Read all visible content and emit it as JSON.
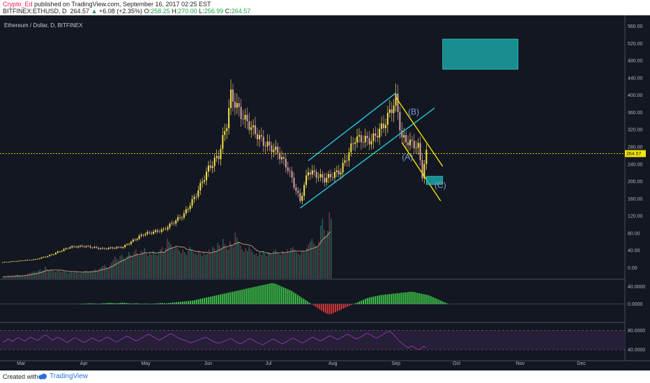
{
  "header": {
    "author": "Crypto_Ed",
    "published": "published on TradingView.com, September 16, 2017 02:25 EST",
    "symbol": "BITFINEX:ETHUSD, D",
    "last": "264.57",
    "change": "+6.08 (+2.35%)",
    "o_label": "O:",
    "o_value": "258.25",
    "h_label": "H:",
    "h_value": "270.00",
    "l_label": "L:",
    "l_value": "256.99",
    "c_label": "C:",
    "c_value": "264.57"
  },
  "footer": {
    "created": "Created with",
    "brand": "TradingView"
  },
  "colors": {
    "background": "#131722",
    "up_candle": "#f5e14a",
    "down_candle": "#d9a2a2",
    "channel": "#28c8dc",
    "wedge": "#f5e600",
    "target_box": "#1aa3a3",
    "macd_up": "#3fd14a",
    "macd_down": "#e03838",
    "rsi": "#9c3fb8"
  },
  "chart_data": [
    {
      "type": "candlestick",
      "title": "Ethereum / Dollar, D, BITFINEX",
      "x_ticks": [
        "Mar",
        "Apr",
        "May",
        "Jun",
        "Jul",
        "Aug",
        "Sep",
        "Oct",
        "Nov",
        "Dec"
      ],
      "y_ticks": [
        "560.00",
        "520.00",
        "480.00",
        "440.00",
        "400.00",
        "360.00",
        "320.00",
        "280.00",
        "240.00",
        "200.00",
        "160.00",
        "120.00",
        "80.00",
        "40.00",
        "0.00"
      ],
      "ylim": [
        -25,
        585
      ],
      "last_price": 264.57,
      "last_price_label": "264.57",
      "x_start": "2017-02-20",
      "series": [
        {
          "name": "price",
          "points": [
            {
              "date": "2017-02-20",
              "close": 12.7
            },
            {
              "date": "2017-03-01",
              "close": 16.3
            },
            {
              "date": "2017-03-08",
              "close": 19.5
            },
            {
              "date": "2017-03-15",
              "close": 28.5
            },
            {
              "date": "2017-03-25",
              "close": 48.0
            },
            {
              "date": "2017-04-01",
              "close": 50.0
            },
            {
              "date": "2017-04-10",
              "close": 44.0
            },
            {
              "date": "2017-04-20",
              "close": 48.0
            },
            {
              "date": "2017-04-30",
              "close": 78.0
            },
            {
              "date": "2017-05-10",
              "close": 88.0
            },
            {
              "date": "2017-05-20",
              "close": 124.0
            },
            {
              "date": "2017-05-26",
              "close": 170.0
            },
            {
              "date": "2017-06-01",
              "close": 230.0
            },
            {
              "date": "2017-06-06",
              "close": 260.0
            },
            {
              "date": "2017-06-10",
              "close": 335.0
            },
            {
              "date": "2017-06-12",
              "close": 400.0
            },
            {
              "date": "2017-06-17",
              "close": 355.0
            },
            {
              "date": "2017-06-22",
              "close": 325.0
            },
            {
              "date": "2017-06-28",
              "close": 290.0
            },
            {
              "date": "2017-07-05",
              "close": 268.0
            },
            {
              "date": "2017-07-10",
              "close": 230.0
            },
            {
              "date": "2017-07-16",
              "close": 155.0
            },
            {
              "date": "2017-07-20",
              "close": 225.0
            },
            {
              "date": "2017-07-28",
              "close": 205.0
            },
            {
              "date": "2017-08-05",
              "close": 225.0
            },
            {
              "date": "2017-08-12",
              "close": 300.0
            },
            {
              "date": "2017-08-20",
              "close": 295.0
            },
            {
              "date": "2017-08-26",
              "close": 330.0
            },
            {
              "date": "2017-09-01",
              "close": 390.0
            },
            {
              "date": "2017-09-04",
              "close": 300.0
            },
            {
              "date": "2017-09-08",
              "close": 290.0
            },
            {
              "date": "2017-09-12",
              "close": 280.0
            },
            {
              "date": "2017-09-14",
              "close": 215.0
            },
            {
              "date": "2017-09-16",
              "close": 264.57
            }
          ]
        }
      ],
      "volume": [
        3,
        3,
        3,
        4,
        3,
        4,
        4,
        5,
        6,
        5,
        4,
        5,
        5,
        6,
        7,
        8,
        9,
        10,
        11,
        9,
        12,
        14,
        11,
        13,
        18,
        15,
        12,
        14,
        12,
        11,
        10,
        12,
        13,
        10,
        11,
        12,
        10,
        9,
        10,
        11,
        9,
        10,
        11,
        9,
        8,
        9,
        10,
        12,
        11,
        10,
        12,
        11,
        13,
        14,
        12,
        15,
        17,
        19,
        21,
        18,
        16,
        20,
        24,
        28,
        33,
        30,
        28,
        34,
        36,
        32,
        30,
        34,
        40,
        36,
        33,
        40,
        44,
        38,
        35,
        42,
        40,
        46,
        38,
        34,
        40,
        36,
        42,
        38,
        35,
        40,
        44,
        48,
        40,
        46,
        60,
        56,
        52,
        48,
        44,
        50,
        46,
        42,
        38,
        44,
        40,
        36,
        42,
        48,
        44,
        40,
        38,
        36,
        42,
        38,
        34,
        40,
        36,
        38,
        44,
        40,
        48,
        46,
        42,
        54,
        50,
        46,
        60,
        52,
        48,
        44,
        56,
        52,
        48,
        70,
        62,
        56,
        50,
        44,
        40,
        46,
        42,
        48,
        44,
        40,
        36,
        38,
        34,
        40,
        36,
        42,
        38,
        34,
        40,
        38,
        36,
        42,
        44,
        40,
        38,
        36,
        42,
        40,
        38,
        44,
        40,
        46,
        48,
        44,
        40,
        38,
        36,
        40,
        42,
        40,
        46,
        52,
        56,
        60,
        54,
        50,
        48,
        56,
        80,
        90,
        74,
        66,
        72,
        100,
        90
      ],
      "volume_ylim": [
        0,
        100
      ],
      "macd": [
        0,
        0,
        0.5,
        0.5,
        1,
        1,
        1.5,
        1.5,
        2,
        2,
        1.5,
        1.5,
        1,
        1,
        1.5,
        2,
        2,
        2.5,
        3,
        3,
        2.5,
        2,
        2,
        2.5,
        3,
        3.5,
        3,
        2.5,
        2,
        1.5,
        1.5,
        2,
        2,
        1.5,
        1,
        1,
        1.5,
        1.5,
        1,
        1,
        1,
        1.5,
        1.5,
        2,
        2.5,
        2.5,
        2,
        2,
        2.5,
        3,
        3.5,
        4,
        4.5,
        5,
        5.5,
        6,
        6,
        6.5,
        7,
        7.5,
        8,
        9,
        10,
        11,
        12,
        13,
        14,
        15,
        16,
        17,
        18,
        19,
        20,
        21,
        22,
        23,
        24,
        25,
        26,
        27,
        28,
        29,
        30,
        31,
        32,
        33,
        34,
        35,
        36,
        37,
        38,
        39,
        40,
        41,
        42,
        43,
        44,
        45,
        46,
        47,
        48,
        47,
        46,
        44,
        42,
        40,
        38,
        36,
        34,
        32,
        30,
        27,
        24,
        21,
        18,
        15,
        12,
        9,
        6,
        3,
        0,
        -3,
        -6,
        -9,
        -12,
        -15,
        -18,
        -20,
        -22,
        -23,
        -22,
        -20,
        -18,
        -16,
        -14,
        -12,
        -10,
        -8,
        -6,
        -4,
        -2,
        0,
        2,
        4,
        6,
        8,
        10,
        12,
        14,
        15,
        16,
        17,
        18,
        19,
        20,
        21,
        21,
        22,
        22,
        23,
        23,
        24,
        24,
        25,
        25,
        26,
        26,
        27,
        27,
        28,
        28,
        28,
        27,
        26,
        25,
        24,
        23,
        22,
        21,
        20,
        18,
        16,
        14,
        12,
        10,
        8,
        6,
        4,
        2
      ],
      "macd_ticks": [
        "40.0000",
        "0.0000"
      ],
      "macd_ylim": [
        -40,
        55
      ],
      "rsi": [
        55,
        58,
        62,
        60,
        57,
        61,
        65,
        63,
        60,
        58,
        62,
        66,
        64,
        61,
        59,
        63,
        67,
        70,
        68,
        64,
        60,
        62,
        66,
        64,
        61,
        58,
        55,
        58,
        62,
        65,
        63,
        60,
        57,
        55,
        58,
        61,
        64,
        62,
        59,
        57,
        60,
        63,
        66,
        64,
        61,
        58,
        56,
        59,
        62,
        65,
        68,
        66,
        63,
        60,
        58,
        61,
        64,
        67,
        70,
        72,
        69,
        66,
        63,
        60,
        62,
        65,
        68,
        71,
        73,
        70,
        67,
        64,
        62,
        60,
        58,
        56,
        54,
        56,
        58,
        60,
        62,
        64,
        66,
        63,
        60,
        57,
        55,
        53,
        55,
        57,
        59,
        61,
        63,
        60,
        57,
        54,
        52,
        55,
        58,
        61,
        63,
        60,
        57,
        54,
        52,
        50,
        53,
        56,
        59,
        62,
        60,
        57,
        54,
        52,
        55,
        58,
        61,
        64,
        62,
        59,
        56,
        54,
        57,
        60,
        63,
        66,
        64,
        61,
        58,
        60,
        63,
        66,
        69,
        67,
        64,
        61,
        63,
        66,
        69,
        72,
        70,
        67,
        64,
        62,
        65,
        68,
        71,
        74,
        72,
        69,
        66,
        64,
        67,
        70,
        73,
        76,
        78,
        75,
        70,
        64,
        58,
        54,
        50,
        46,
        44,
        48,
        45,
        42,
        40,
        43,
        47,
        44
      ],
      "rsi_ticks": [
        "80.0000",
        "40.0000"
      ],
      "rsi_ylim": [
        20,
        95
      ],
      "annotations": [
        {
          "name": "rising-channel-upper",
          "x1": "2017-07-20",
          "y1": 248,
          "x2": "2017-09-01",
          "y2": 405,
          "color": "channel"
        },
        {
          "name": "rising-channel-lower",
          "x1": "2017-07-16",
          "y1": 138,
          "x2": "2017-09-20",
          "y2": 370,
          "color": "channel"
        },
        {
          "name": "falling-wedge-upper",
          "x1": "2017-09-01",
          "y1": 395,
          "x2": "2017-09-24",
          "y2": 235,
          "color": "wedge"
        },
        {
          "name": "falling-wedge-lower",
          "x1": "2017-09-04",
          "y1": 290,
          "x2": "2017-09-23",
          "y2": 155,
          "color": "wedge"
        }
      ],
      "wave_labels": [
        {
          "text": "(A)",
          "date": "2017-09-04",
          "value": 250
        },
        {
          "text": "(B)",
          "date": "2017-09-07",
          "value": 355
        },
        {
          "text": "(C)",
          "date": "2017-09-20",
          "value": 185
        }
      ],
      "target_zones": [
        {
          "name": "upper-target",
          "x1": "2017-09-24",
          "x2": "2017-10-31",
          "y1": 460,
          "y2": 530
        },
        {
          "name": "lower-target",
          "x1": "2017-09-16",
          "x2": "2017-09-24",
          "y1": 193,
          "y2": 212
        }
      ]
    }
  ]
}
